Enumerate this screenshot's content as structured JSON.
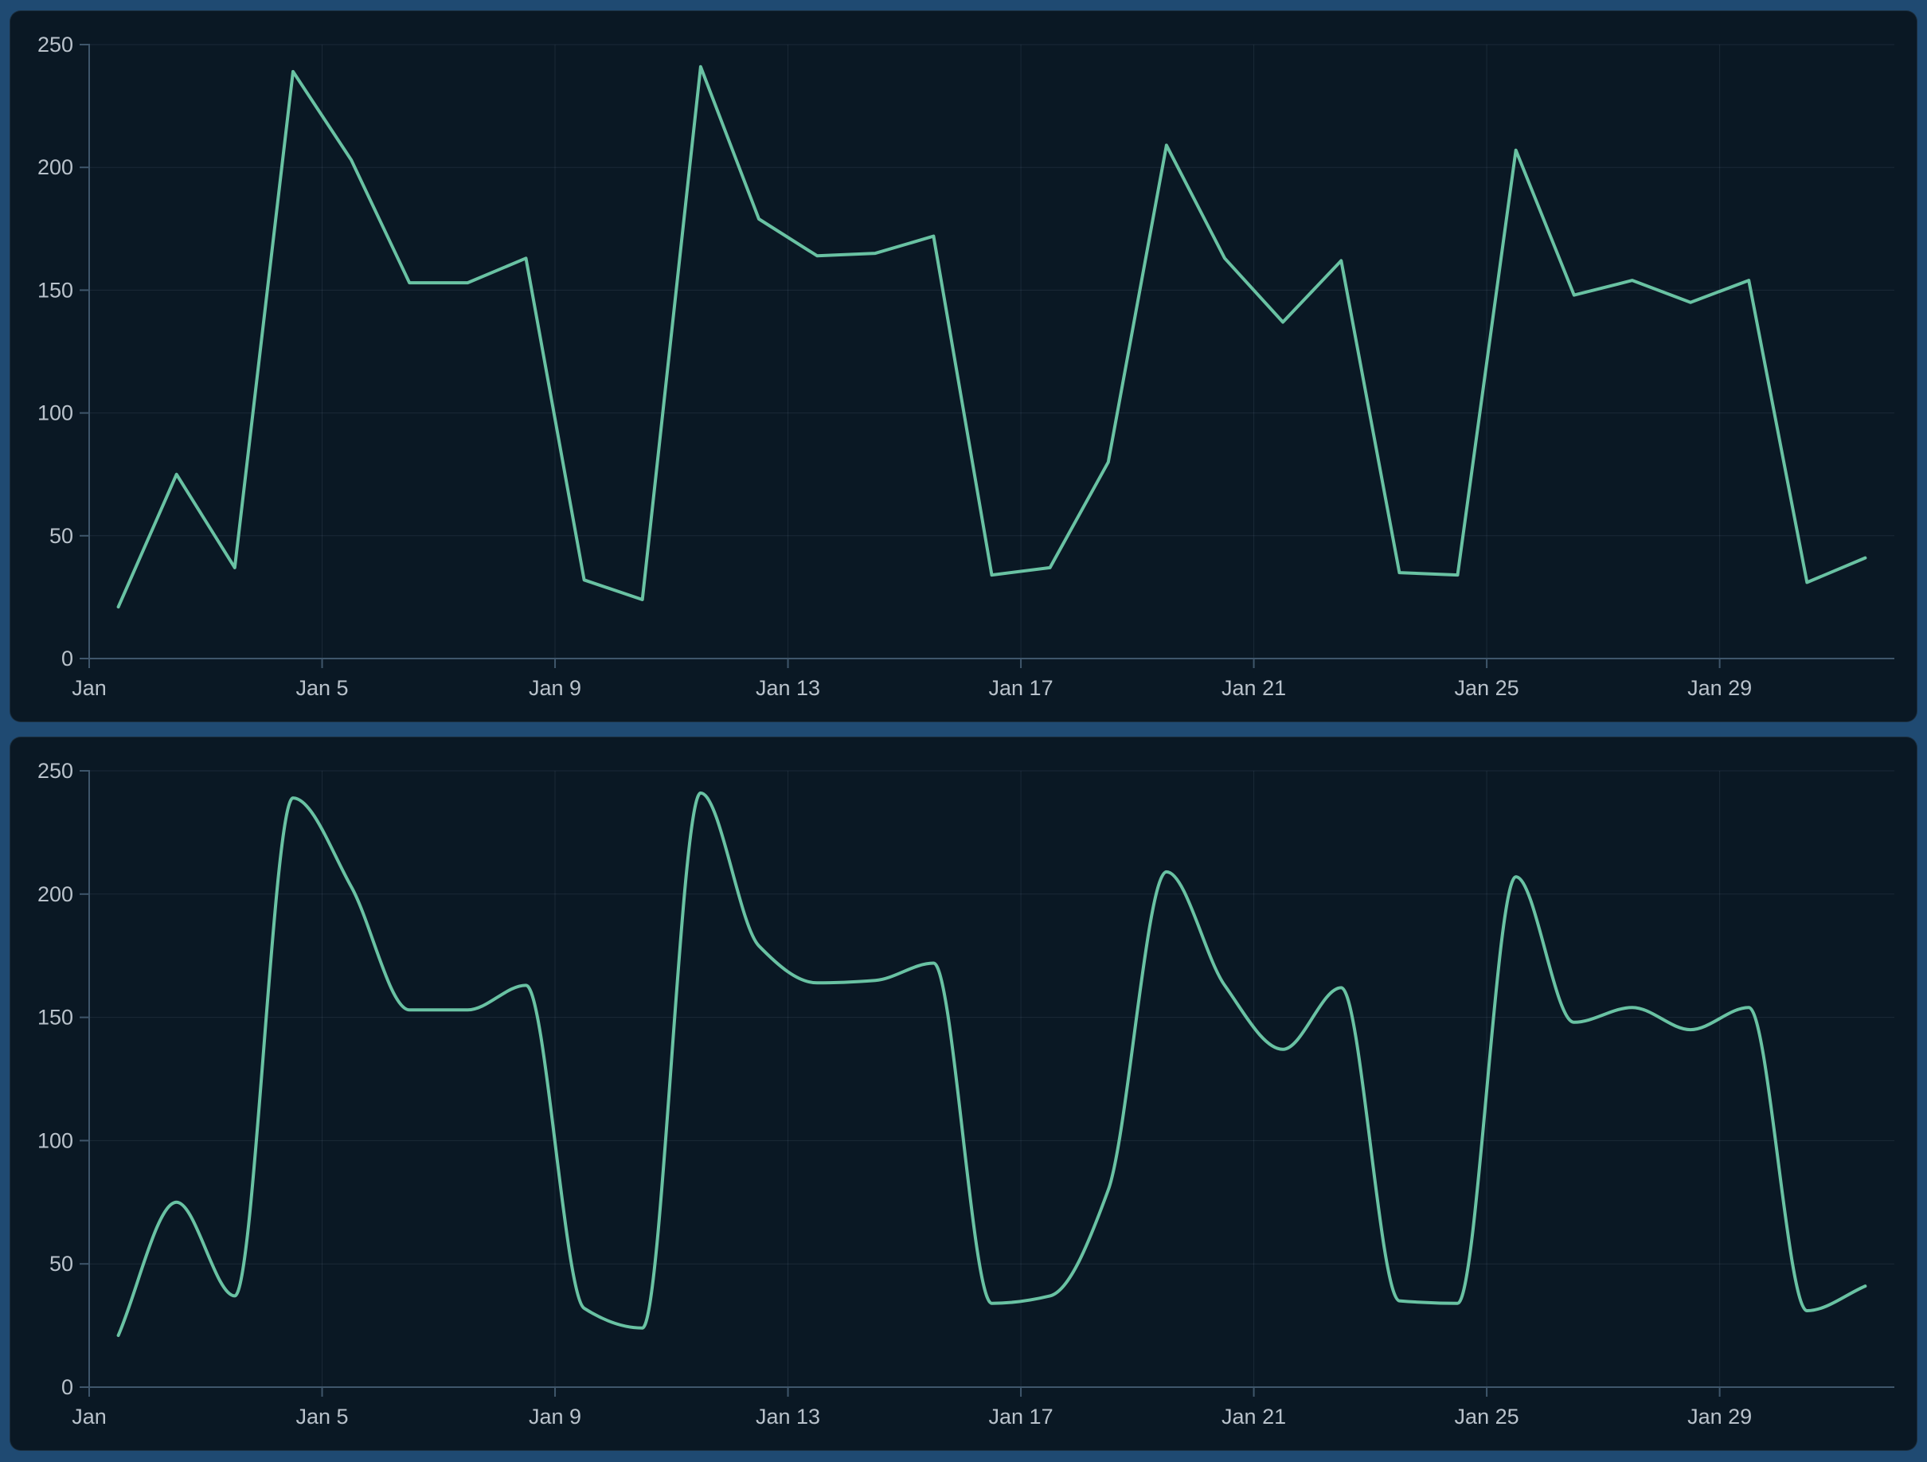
{
  "page": {
    "background_color": "#1f4a72",
    "panel_color": "#0a1824",
    "grid_color": "rgba(173,200,221,0.10)",
    "axis_color": "#3f566b",
    "label_color": "#b9c2cb"
  },
  "chart_data": [
    {
      "type": "line",
      "line_style": "linear",
      "title": "",
      "xlabel": "",
      "ylabel": "",
      "ylim": [
        0,
        250
      ],
      "y_ticks": [
        0,
        50,
        100,
        150,
        200,
        250
      ],
      "x_tick_positions": [
        0,
        4,
        8,
        12,
        16,
        20,
        24,
        28
      ],
      "x_tick_labels": [
        "Jan",
        "Jan 5",
        "Jan 9",
        "Jan 13",
        "Jan 17",
        "Jan 21",
        "Jan 25",
        "Jan 29"
      ],
      "categories": [
        "Jan 1",
        "Jan 2",
        "Jan 3",
        "Jan 4",
        "Jan 5",
        "Jan 6",
        "Jan 7",
        "Jan 8",
        "Jan 9",
        "Jan 10",
        "Jan 11",
        "Jan 12",
        "Jan 13",
        "Jan 14",
        "Jan 15",
        "Jan 16",
        "Jan 17",
        "Jan 18",
        "Jan 19",
        "Jan 20",
        "Jan 21",
        "Jan 22",
        "Jan 23",
        "Jan 24",
        "Jan 25",
        "Jan 26",
        "Jan 27",
        "Jan 28",
        "Jan 29",
        "Jan 30",
        "Jan 31"
      ],
      "values": [
        21,
        75,
        37,
        239,
        203,
        153,
        153,
        163,
        32,
        24,
        241,
        179,
        164,
        165,
        172,
        34,
        37,
        80,
        209,
        163,
        137,
        162,
        35,
        34,
        207,
        148,
        154,
        145,
        154,
        31,
        41
      ],
      "line_color": "#69c2a3",
      "grid": true,
      "legend": false
    },
    {
      "type": "line",
      "line_style": "smooth",
      "title": "",
      "xlabel": "",
      "ylabel": "",
      "ylim": [
        0,
        250
      ],
      "y_ticks": [
        0,
        50,
        100,
        150,
        200,
        250
      ],
      "x_tick_positions": [
        0,
        4,
        8,
        12,
        16,
        20,
        24,
        28
      ],
      "x_tick_labels": [
        "Jan",
        "Jan 5",
        "Jan 9",
        "Jan 13",
        "Jan 17",
        "Jan 21",
        "Jan 25",
        "Jan 29"
      ],
      "categories": [
        "Jan 1",
        "Jan 2",
        "Jan 3",
        "Jan 4",
        "Jan 5",
        "Jan 6",
        "Jan 7",
        "Jan 8",
        "Jan 9",
        "Jan 10",
        "Jan 11",
        "Jan 12",
        "Jan 13",
        "Jan 14",
        "Jan 15",
        "Jan 16",
        "Jan 17",
        "Jan 18",
        "Jan 19",
        "Jan 20",
        "Jan 21",
        "Jan 22",
        "Jan 23",
        "Jan 24",
        "Jan 25",
        "Jan 26",
        "Jan 27",
        "Jan 28",
        "Jan 29",
        "Jan 30",
        "Jan 31"
      ],
      "values": [
        21,
        75,
        37,
        239,
        203,
        153,
        153,
        163,
        32,
        24,
        241,
        179,
        164,
        165,
        172,
        34,
        37,
        80,
        209,
        163,
        137,
        162,
        35,
        34,
        207,
        148,
        154,
        145,
        154,
        31,
        41
      ],
      "line_color": "#69c2a3",
      "grid": true,
      "legend": false
    }
  ]
}
